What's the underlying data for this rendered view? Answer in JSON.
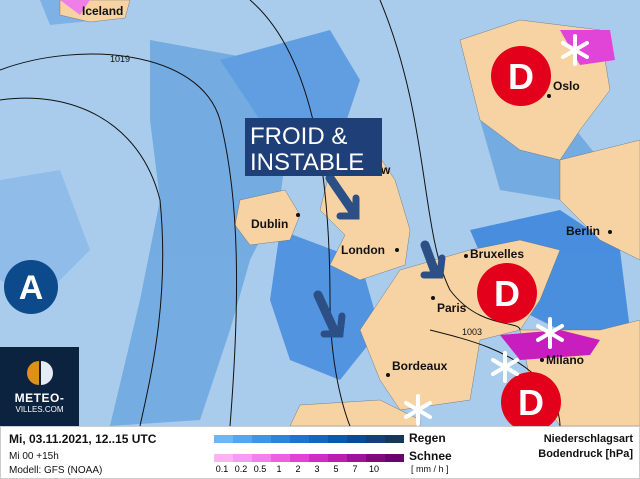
{
  "map": {
    "cities": [
      "Iceland",
      "Oslo",
      "Berlin",
      "Dublin",
      "London",
      "Bruxelles",
      "Paris",
      "Milano",
      "Bordeaux",
      "w"
    ],
    "isobars": [
      "1019",
      "1003"
    ],
    "annotation": "FROID &\nINSTABLE",
    "annotation_lines": [
      "FROID &",
      "INSTABLE"
    ],
    "high_label": "A",
    "low_label": "D",
    "colors": {
      "sea": "#a9ccec",
      "land": "#f7d3a3",
      "low": "#e2001a",
      "high": "#0d4a8c",
      "arrow": "#2c4f86",
      "annotation_bg": "#1e3f77"
    }
  },
  "logo": {
    "line1": "METEO-",
    "line2": "VILLES.COM"
  },
  "footer": {
    "datetime": "Mi, 03.11.2021, 12..15 UTC",
    "run": "Mi 00 +15h",
    "model": "Modell: GFS (NOAA)",
    "rain_label": "Regen",
    "snow_label": "Schnee",
    "unit": "[ mm / h ]",
    "ticks": [
      "0.1",
      "0.2",
      "0.5",
      "1",
      "2",
      "3",
      "5",
      "7",
      "10"
    ],
    "title1": "Niederschlagsart",
    "title2": "Bodendruck [hPa]",
    "rain_colors": [
      "#6cb6f4",
      "#55a6ee",
      "#3f94e4",
      "#2d83da",
      "#1f73cf",
      "#1566bf",
      "#0c58ab",
      "#0b4b95",
      "#123f75",
      "#16365c"
    ],
    "snow_colors": [
      "#f9b6f2",
      "#f79cef",
      "#f480ea",
      "#ef5fe4",
      "#e640da",
      "#d42ac8",
      "#bf1cb4",
      "#a0109c",
      "#84077f",
      "#6c036a"
    ]
  }
}
